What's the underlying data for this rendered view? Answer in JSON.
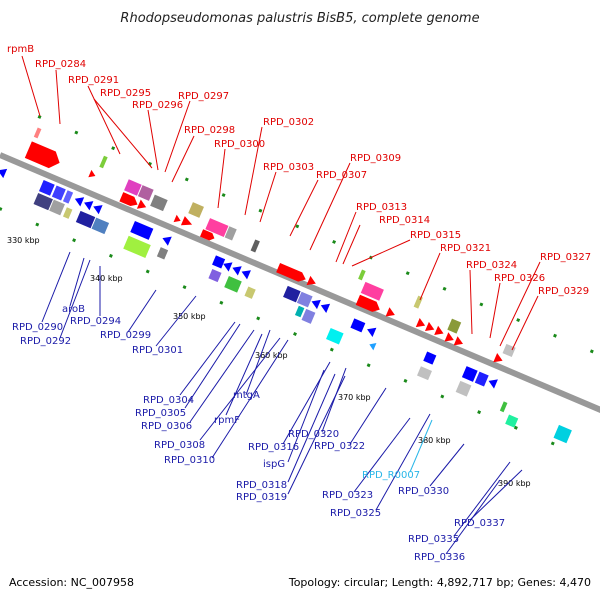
{
  "title": "Rhodopseudomonas palustris BisB5, complete genome",
  "footer": {
    "accession": "Accession: NC_007958",
    "summary": "Topology: circular; Length: 4,892,717 bp; Genes: 4,470"
  },
  "colors": {
    "forward_gene": "#ff0000",
    "reverse_gene": "#0000ff",
    "rna_label": "#29b6e8",
    "backbone": "#999999"
  },
  "scale": {
    "ticks": [
      {
        "label": "330 kbp",
        "pos": 330
      },
      {
        "label": "340 kbp",
        "pos": 340
      },
      {
        "label": "350 kbp",
        "pos": 350
      },
      {
        "label": "360 kbp",
        "pos": 360
      },
      {
        "label": "370 kbp",
        "pos": 370
      },
      {
        "label": "380 kbp",
        "pos": 380
      },
      {
        "label": "390 kbp",
        "pos": 390
      }
    ]
  },
  "top_labels": [
    "rpmB",
    "RPD_0284",
    "RPD_0291",
    "RPD_0295",
    "RPD_0296",
    "RPD_0297",
    "RPD_0298",
    "RPD_0300",
    "RPD_0302",
    "RPD_0303",
    "RPD_0307",
    "RPD_0309",
    "RPD_0313",
    "RPD_0314",
    "RPD_0315",
    "RPD_0321",
    "RPD_0324",
    "RPD_0326",
    "RPD_0327",
    "RPD_0329"
  ],
  "bottom_labels": [
    "RPD_0290",
    "aroB",
    "RPD_0292",
    "RPD_0294",
    "RPD_0299",
    "RPD_0301",
    "RPD_0304",
    "RPD_0305",
    "RPD_0306",
    "mtgA",
    "rpmF",
    "RPD_0308",
    "RPD_0310",
    "RPD_0316",
    "RPD_0320",
    "RPD_0322",
    "ispG",
    "RPD_0318",
    "RPD_0319",
    "RPD_R0007",
    "RPD_0323",
    "RPD_0330",
    "RPD_0325",
    "RPD_0337",
    "RPD_0335",
    "RPD_0336"
  ]
}
